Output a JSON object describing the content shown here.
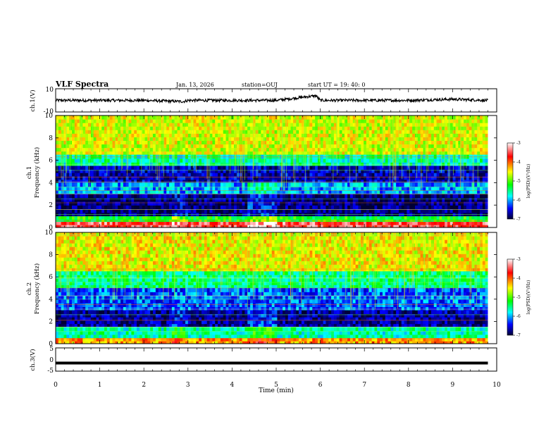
{
  "header": {
    "title": "VLF Spectra",
    "date": "Jan. 13, 2026",
    "station": "station=OUJ",
    "start_ut": "start UT =  19: 40: 0"
  },
  "panels": {
    "ch1_wave": {
      "ylabel": "ch.1(V)",
      "ticks": [
        "10",
        "-10"
      ]
    },
    "ch1_spec": {
      "ylabel_top": "ch.1",
      "ylabel_bottom": "Frequency (kHz)",
      "ticks": [
        "10",
        "8",
        "6",
        "4",
        "2",
        "0"
      ]
    },
    "ch2_spec": {
      "ylabel_top": "ch.2",
      "ylabel_bottom": "Frequency (kHz)",
      "ticks": [
        "10",
        "8",
        "6",
        "4",
        "2",
        "0"
      ]
    },
    "ch3_wave": {
      "ylabel": "ch.3(V)",
      "ticks": [
        "5",
        "0",
        "-5"
      ]
    }
  },
  "colorbar": {
    "label": "log(PSD)(V²/Hz)",
    "ticks": [
      "-3",
      "-4",
      "-5",
      "-6",
      "-7"
    ],
    "colors": [
      "#ffffff",
      "#ff0000",
      "#ffff00",
      "#00ff00",
      "#00ffff",
      "#0000ff",
      "#000033"
    ]
  },
  "chart_data": [
    {
      "type": "line",
      "title": "VLF Spectra",
      "ylabel": "ch.1(V)",
      "xlabel": "Time (min)",
      "xlim": [
        0,
        10
      ],
      "ylim": [
        -10,
        10
      ],
      "x_ticks": [
        "0",
        "1",
        "2",
        "3",
        "4",
        "5",
        "6",
        "7",
        "8",
        "9",
        "10"
      ],
      "series": [
        {
          "x": [
            0,
            1,
            2,
            2.9,
            3,
            4,
            5,
            5.9,
            6,
            7,
            8,
            9,
            9.8
          ],
          "y": [
            0,
            0,
            0,
            -1,
            0,
            0,
            0,
            4,
            0,
            0,
            0,
            1,
            0
          ]
        }
      ]
    },
    {
      "type": "heatmap",
      "ylabel": "Frequency (kHz)",
      "xlim": [
        0,
        10
      ],
      "ylim": [
        0,
        10
      ],
      "x_data_end": 9.8,
      "colorscale_range": [
        -7,
        -3
      ],
      "freq_bands": [
        {
          "f_low": 6.5,
          "f_high": 10,
          "log_psd": -4.6
        },
        {
          "f_low": 5.5,
          "f_high": 6.5,
          "log_psd": -5.6
        },
        {
          "f_low": 4.0,
          "f_high": 5.5,
          "log_psd": -6.6
        },
        {
          "f_low": 3.0,
          "f_high": 4.0,
          "log_psd": -6.0
        },
        {
          "f_low": 1.0,
          "f_high": 3.0,
          "log_psd": -6.8
        },
        {
          "f_low": 0.5,
          "f_high": 1.0,
          "log_psd": -5.2
        },
        {
          "f_low": 0.0,
          "f_high": 0.5,
          "log_psd": -3.5
        }
      ]
    },
    {
      "type": "heatmap",
      "ylabel": "Frequency (kHz)",
      "xlim": [
        0,
        10
      ],
      "ylim": [
        0,
        10
      ],
      "x_data_end": 9.8,
      "colorscale_range": [
        -7,
        -3
      ],
      "freq_bands": [
        {
          "f_low": 6.5,
          "f_high": 10,
          "log_psd": -4.5
        },
        {
          "f_low": 5.0,
          "f_high": 6.5,
          "log_psd": -5.5
        },
        {
          "f_low": 3.0,
          "f_high": 5.0,
          "log_psd": -6.2
        },
        {
          "f_low": 1.5,
          "f_high": 3.0,
          "log_psd": -6.7
        },
        {
          "f_low": 0.5,
          "f_high": 1.5,
          "log_psd": -5.6
        },
        {
          "f_low": 0.0,
          "f_high": 0.5,
          "log_psd": -4.2
        }
      ]
    },
    {
      "type": "line",
      "ylabel": "ch.3(V)",
      "xlabel": "Time (min)",
      "xlim": [
        0,
        10
      ],
      "ylim": [
        -5,
        5
      ],
      "series": [
        {
          "x": [
            0,
            9.8
          ],
          "y": [
            -1.5,
            -1.5
          ]
        }
      ]
    }
  ],
  "xaxis": {
    "label": "Time (min)",
    "ticks": [
      "0",
      "1",
      "2",
      "3",
      "4",
      "5",
      "6",
      "7",
      "8",
      "9",
      "10"
    ]
  }
}
